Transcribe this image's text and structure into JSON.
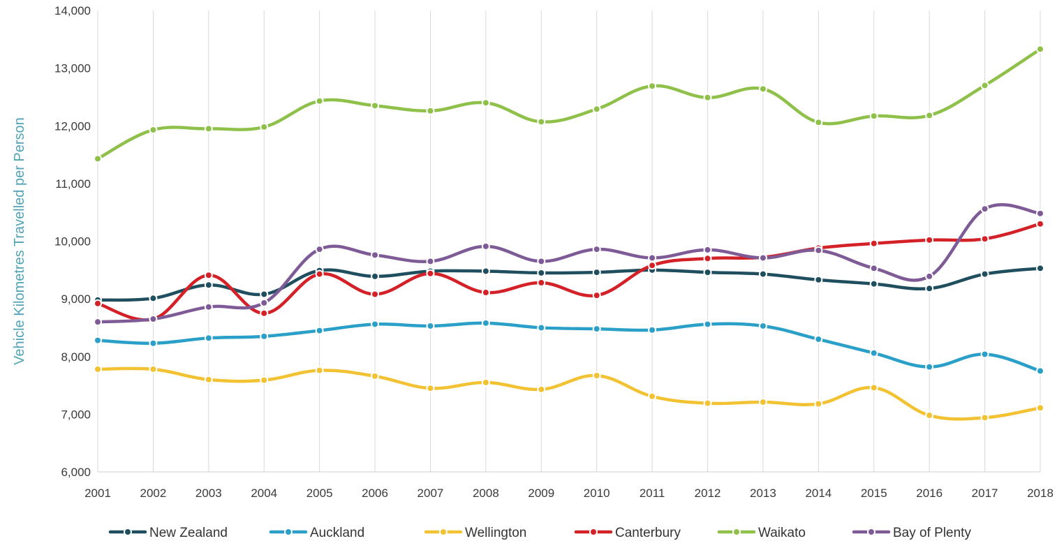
{
  "chart_data": {
    "type": "line",
    "smooth": true,
    "title": "",
    "xlabel": "",
    "ylabel": "Vehicle Kilometres Travelled per Person",
    "x": [
      "2001",
      "2002",
      "2003",
      "2004",
      "2005",
      "2006",
      "2007",
      "2008",
      "2009",
      "2010",
      "2011",
      "2012",
      "2013",
      "2014",
      "2015",
      "2016",
      "2017",
      "2018"
    ],
    "ylim": [
      6000,
      14000
    ],
    "yticks": [
      6000,
      7000,
      8000,
      9000,
      10000,
      11000,
      12000,
      13000,
      14000
    ],
    "ytick_labels": [
      "6,000",
      "7,000",
      "8,000",
      "9,000",
      "10,000",
      "11,000",
      "12,000",
      "13,000",
      "14,000"
    ],
    "grid": "vertical",
    "legend_position": "bottom",
    "series": [
      {
        "name": "New Zealand",
        "color": "#1f4e5f",
        "values": [
          8980,
          9010,
          9240,
          9080,
          9490,
          9390,
          9480,
          9480,
          9450,
          9460,
          9500,
          9460,
          9430,
          9330,
          9260,
          9180,
          9430,
          9530
        ]
      },
      {
        "name": "Auckland",
        "color": "#2a9fc8",
        "values": [
          8280,
          8230,
          8320,
          8350,
          8450,
          8560,
          8530,
          8580,
          8500,
          8480,
          8460,
          8560,
          8530,
          8300,
          8060,
          7820,
          8040,
          7750
        ]
      },
      {
        "name": "Wellington",
        "color": "#f2c232",
        "values": [
          7780,
          7780,
          7600,
          7590,
          7760,
          7660,
          7450,
          7550,
          7430,
          7670,
          7310,
          7190,
          7210,
          7180,
          7460,
          6980,
          6940,
          7110
        ]
      },
      {
        "name": "Canterbury",
        "color": "#d42127",
        "values": [
          8920,
          8650,
          9410,
          8750,
          9430,
          9080,
          9440,
          9110,
          9280,
          9060,
          9580,
          9700,
          9720,
          9880,
          9960,
          10020,
          10040,
          10300
        ]
      },
      {
        "name": "Waikato",
        "color": "#8fc04a",
        "values": [
          11430,
          11930,
          11950,
          11980,
          12430,
          12350,
          12260,
          12400,
          12070,
          12290,
          12690,
          12490,
          12640,
          12060,
          12170,
          12180,
          12700,
          13330
        ]
      },
      {
        "name": "Bay of Plenty",
        "color": "#7e5b96",
        "values": [
          8600,
          8650,
          8860,
          8930,
          9860,
          9760,
          9650,
          9910,
          9650,
          9860,
          9710,
          9850,
          9710,
          9840,
          9530,
          9390,
          10560,
          10480
        ]
      }
    ]
  }
}
